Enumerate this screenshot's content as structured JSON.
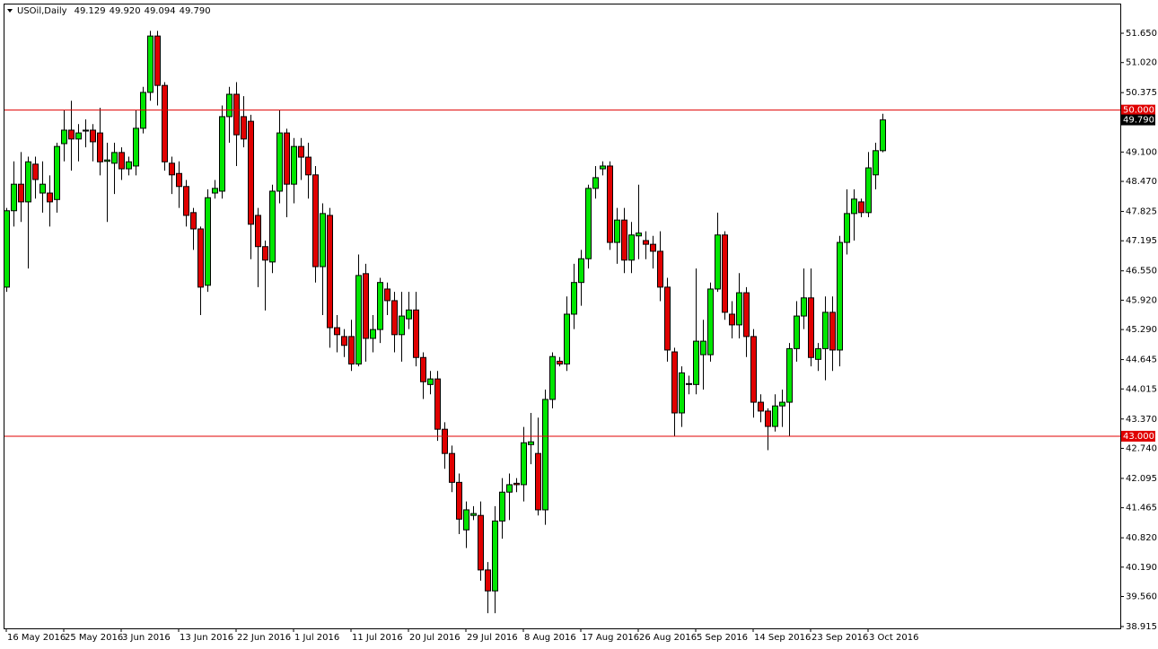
{
  "chart_data": {
    "type": "candlestick",
    "title": "USOil,Daily",
    "header_values": [
      "49.129",
      "49.920",
      "49.094",
      "49.790"
    ],
    "categories": [
      "16 May 2016",
      null,
      null,
      null,
      null,
      null,
      null,
      null,
      "25 May 2016",
      null,
      null,
      null,
      null,
      null,
      null,
      null,
      "3 Jun 2016",
      null,
      null,
      null,
      null,
      null,
      null,
      null,
      "13 Jun 2016",
      null,
      null,
      null,
      null,
      null,
      null,
      null,
      "22 Jun 2016",
      null,
      null,
      null,
      null,
      null,
      null,
      null,
      "1 Jul 2016",
      null,
      null,
      null,
      null,
      null,
      null,
      null,
      "11 Jul 2016",
      null,
      null,
      null,
      null,
      null,
      null,
      null,
      "20 Jul 2016",
      null,
      null,
      null,
      null,
      null,
      null,
      null,
      "29 Jul 2016",
      null,
      null,
      null,
      null,
      null,
      null,
      null,
      "8 Aug 2016",
      null,
      null,
      null,
      null,
      null,
      null,
      null,
      "17 Aug 2016",
      null,
      null,
      null,
      null,
      null,
      null,
      null,
      "26 Aug 2016",
      null,
      null,
      null,
      null,
      null,
      null,
      null,
      "5 Sep 2016",
      null,
      null,
      null,
      null,
      null,
      null,
      null,
      "14 Sep 2016",
      null,
      null,
      null,
      null,
      null,
      null,
      null,
      "23 Sep 2016",
      null,
      null,
      null,
      null,
      null,
      null,
      null,
      "3 Oct 2016",
      null,
      null
    ],
    "open": [
      46.2,
      47.84,
      48.41,
      48.03,
      48.84,
      48.22,
      48.22,
      48.08,
      49.28,
      49.57,
      49.38,
      49.55,
      49.57,
      49.51,
      48.9,
      48.86,
      49.09,
      48.74,
      48.8,
      49.61,
      50.38,
      51.59,
      50.53,
      48.86,
      48.64,
      48.36,
      47.8,
      47.45,
      46.24,
      48.22,
      48.26,
      49.86,
      50.34,
      49.86,
      49.76,
      47.74,
      47.07,
      46.74,
      48.26,
      49.51,
      48.41,
      49.22,
      48.99,
      48.61,
      46.64,
      47.74,
      45.33,
      45.14,
      45.14,
      44.55,
      46.49,
      45.1,
      45.29,
      46.16,
      45.91,
      45.18,
      45.52,
      45.71,
      44.69,
      44.11,
      44.23,
      43.15,
      42.63,
      42.01,
      40.99,
      41.3,
      41.3,
      40.13,
      39.68,
      41.18,
      41.8,
      41.99,
      41.96,
      42.82,
      42.63,
      41.42,
      43.79,
      44.61,
      44.55,
      45.62,
      46.3,
      46.81,
      48.32,
      48.74,
      48.8,
      47.16,
      47.64,
      46.78,
      47.3,
      47.2,
      47.12,
      46.97,
      46.2,
      44.81,
      43.5,
      44.11,
      44.11,
      44.75,
      44.75,
      46.16,
      47.32,
      45.62,
      45.39,
      46.08,
      45.14,
      43.73,
      43.54,
      43.21,
      43.65,
      43.73,
      44.88,
      45.58,
      45.97,
      44.65,
      44.88,
      45.66,
      44.85,
      47.16,
      47.78,
      48.03,
      47.8,
      48.61,
      49.129
    ],
    "high": [
      47.9,
      48.9,
      49.1,
      49.0,
      49.0,
      48.9,
      48.6,
      49.3,
      50.0,
      50.2,
      49.7,
      49.8,
      49.7,
      50.05,
      49.3,
      49.3,
      49.2,
      49.0,
      50.0,
      50.5,
      51.7,
      51.7,
      50.6,
      49.0,
      48.9,
      48.5,
      47.9,
      47.5,
      48.3,
      48.5,
      50.1,
      50.5,
      50.6,
      50.3,
      49.9,
      47.9,
      47.2,
      48.4,
      50.0,
      49.6,
      49.4,
      49.4,
      49.3,
      48.8,
      48.0,
      47.9,
      45.6,
      45.3,
      45.5,
      46.9,
      46.7,
      45.6,
      46.4,
      46.3,
      46.1,
      46.1,
      46.1,
      46.1,
      44.8,
      44.4,
      44.4,
      43.3,
      42.8,
      42.2,
      41.6,
      41.5,
      41.6,
      40.3,
      41.5,
      42.1,
      42.2,
      42.1,
      43.2,
      43.5,
      43.4,
      44.0,
      44.8,
      44.7,
      46.0,
      46.7,
      47.0,
      48.4,
      48.8,
      48.9,
      48.9,
      47.9,
      47.9,
      47.6,
      48.4,
      47.4,
      47.3,
      47.4,
      46.4,
      44.9,
      44.5,
      44.3,
      46.6,
      45.5,
      46.3,
      47.8,
      47.4,
      45.9,
      46.5,
      46.2,
      45.3,
      43.9,
      43.6,
      43.9,
      44.0,
      45.0,
      45.9,
      46.6,
      46.6,
      45.0,
      46.0,
      46.0,
      47.3,
      48.3,
      48.3,
      48.1,
      49.1,
      49.3,
      49.92
    ],
    "low": [
      46.1,
      47.5,
      47.6,
      46.6,
      48.1,
      47.8,
      47.5,
      47.8,
      48.9,
      48.7,
      48.9,
      49.2,
      48.9,
      48.6,
      47.6,
      48.2,
      48.5,
      48.6,
      48.6,
      49.5,
      50.2,
      50.1,
      48.7,
      48.2,
      47.9,
      47.5,
      47.0,
      45.6,
      46.1,
      48.1,
      48.1,
      49.3,
      48.8,
      49.2,
      46.8,
      46.2,
      45.7,
      46.5,
      48.0,
      47.7,
      48.0,
      48.5,
      48.1,
      46.3,
      45.6,
      44.9,
      44.8,
      44.7,
      44.4,
      44.5,
      44.6,
      44.8,
      45.0,
      45.6,
      44.8,
      44.6,
      45.3,
      44.5,
      43.8,
      43.9,
      42.9,
      42.3,
      41.8,
      40.9,
      40.6,
      41.2,
      39.9,
      39.2,
      39.2,
      40.8,
      41.2,
      41.8,
      41.6,
      42.4,
      41.3,
      41.1,
      43.6,
      44.5,
      44.4,
      45.3,
      45.8,
      46.6,
      48.1,
      48.6,
      47.0,
      46.7,
      46.5,
      46.5,
      46.8,
      46.8,
      46.6,
      45.9,
      44.6,
      43.0,
      43.2,
      43.9,
      43.9,
      44.0,
      44.6,
      46.1,
      45.5,
      45.1,
      45.1,
      44.7,
      43.4,
      43.3,
      42.7,
      43.1,
      43.2,
      43.0,
      44.6,
      45.3,
      44.5,
      44.4,
      44.2,
      44.4,
      44.5,
      46.9,
      47.2,
      47.7,
      47.7,
      48.3,
      49.094
    ],
    "close": [
      47.84,
      48.41,
      48.03,
      48.89,
      48.51,
      48.41,
      48.03,
      49.22,
      49.57,
      49.38,
      49.51,
      49.57,
      49.32,
      48.89,
      48.93,
      49.09,
      48.74,
      48.89,
      49.61,
      50.38,
      51.59,
      50.53,
      48.89,
      48.61,
      48.36,
      47.74,
      47.45,
      46.2,
      48.12,
      48.32,
      49.86,
      50.34,
      49.47,
      49.38,
      47.55,
      47.07,
      46.78,
      48.26,
      49.51,
      48.41,
      49.22,
      48.99,
      48.61,
      46.64,
      47.78,
      45.33,
      45.18,
      44.95,
      44.55,
      46.45,
      45.1,
      45.29,
      46.3,
      45.91,
      45.18,
      45.58,
      45.71,
      44.69,
      44.17,
      44.23,
      43.15,
      42.63,
      42.01,
      41.22,
      41.42,
      41.34,
      40.13,
      39.68,
      41.18,
      41.8,
      41.96,
      41.96,
      42.86,
      42.88,
      41.42,
      43.79,
      44.71,
      44.55,
      45.62,
      46.3,
      46.81,
      48.32,
      48.55,
      48.8,
      47.16,
      47.64,
      46.78,
      47.32,
      47.36,
      47.12,
      46.97,
      46.2,
      44.85,
      43.5,
      44.36,
      44.13,
      45.04,
      45.04,
      46.16,
      47.32,
      45.66,
      45.39,
      46.08,
      45.14,
      43.73,
      43.54,
      43.21,
      43.65,
      43.73,
      44.88,
      45.58,
      45.97,
      44.69,
      44.88,
      45.66,
      44.85,
      47.16,
      47.78,
      48.09,
      47.8,
      48.76,
      49.13,
      49.79
    ],
    "up_color": "#00e600",
    "down_color": "#e00000",
    "ylim": [
      38.876,
      52.267
    ],
    "yticks": [
      {
        "value": 51.65,
        "label": "51.650"
      },
      {
        "value": 51.02,
        "label": "51.020"
      },
      {
        "value": 50.375,
        "label": "50.375"
      },
      {
        "value": 49.1,
        "label": "49.100"
      },
      {
        "value": 48.47,
        "label": "48.470"
      },
      {
        "value": 47.825,
        "label": "47.825"
      },
      {
        "value": 47.195,
        "label": "47.195"
      },
      {
        "value": 46.55,
        "label": "46.550"
      },
      {
        "value": 45.92,
        "label": "45.920"
      },
      {
        "value": 45.29,
        "label": "45.290"
      },
      {
        "value": 44.645,
        "label": "44.645"
      },
      {
        "value": 44.015,
        "label": "44.015"
      },
      {
        "value": 43.37,
        "label": "43.370"
      },
      {
        "value": 42.74,
        "label": "42.740"
      },
      {
        "value": 42.095,
        "label": "42.095"
      },
      {
        "value": 41.465,
        "label": "41.465"
      },
      {
        "value": 40.82,
        "label": "40.820"
      },
      {
        "value": 40.19,
        "label": "40.190"
      },
      {
        "value": 39.56,
        "label": "39.560"
      },
      {
        "value": 38.915,
        "label": "38.915"
      }
    ],
    "hlines": [
      {
        "value": 50,
        "label": "50.000"
      },
      {
        "value": 43,
        "label": "43.000"
      }
    ],
    "hline_color": "#e00000",
    "last_price": {
      "value": 49.79,
      "label": "49.790"
    }
  }
}
